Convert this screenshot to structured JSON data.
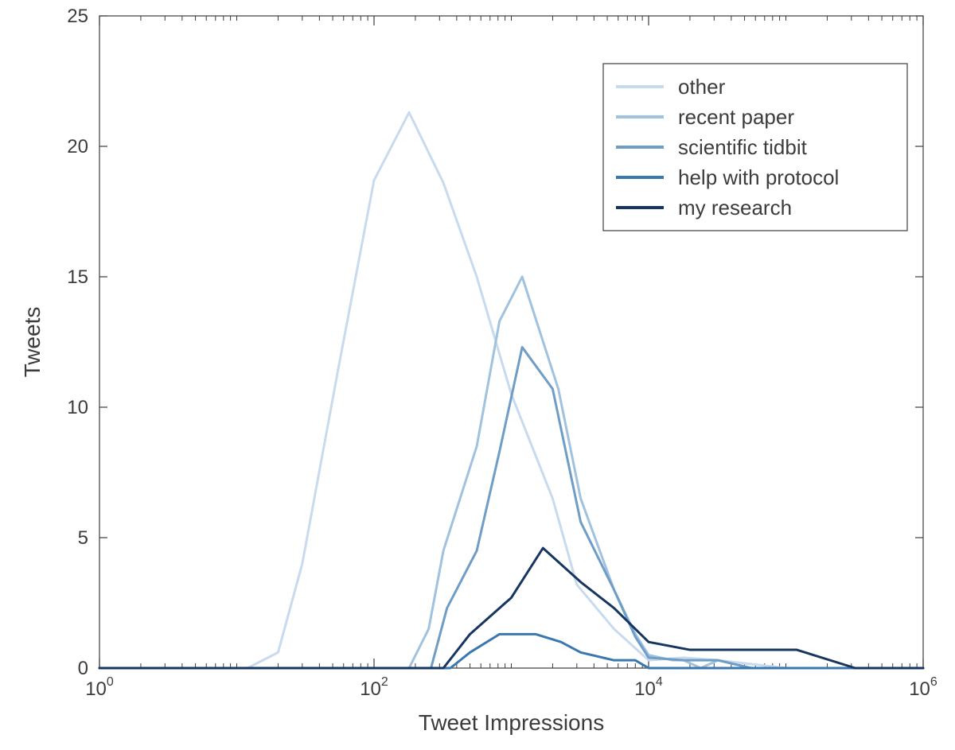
{
  "chart": {
    "type": "line",
    "xlabel": "Tweet Impressions",
    "ylabel": "Tweets",
    "background_color": "#ffffff",
    "axis_color": "#3c3c3c",
    "tick_color": "#3c3c3c",
    "label_fontsize": 28,
    "tick_fontsize": 24,
    "legend_fontsize": 26,
    "line_width_series": 3,
    "x_scale": "log",
    "y_scale": "linear",
    "xlim": [
      1,
      1000000
    ],
    "ylim": [
      0,
      25
    ],
    "x_major_ticks_exp": [
      0,
      2,
      4,
      6
    ],
    "x_minor_decades": [
      0,
      1,
      2,
      3,
      4,
      5
    ],
    "y_ticks": [
      0,
      5,
      10,
      15,
      20,
      25
    ],
    "legend": {
      "position": "top-right",
      "box_stroke": "#3c3c3c",
      "box_fill": "#ffffff",
      "swatch_length": 60,
      "swatch_width": 4
    },
    "series": [
      {
        "name": "other",
        "color": "#c8daed",
        "points": [
          [
            1,
            0
          ],
          [
            1.5,
            0
          ],
          [
            2,
            0
          ],
          [
            3,
            0
          ],
          [
            5,
            0
          ],
          [
            8,
            0
          ],
          [
            12,
            0
          ],
          [
            20,
            0.6
          ],
          [
            30,
            4.0
          ],
          [
            55,
            11.5
          ],
          [
            100,
            18.7
          ],
          [
            180,
            21.3
          ],
          [
            320,
            18.6
          ],
          [
            560,
            15.0
          ],
          [
            1000,
            10.5
          ],
          [
            2000,
            6.5
          ],
          [
            3000,
            3.2
          ],
          [
            5600,
            1.5
          ],
          [
            10000,
            0.3
          ],
          [
            18000,
            0.4
          ],
          [
            32000,
            0.3
          ],
          [
            100000,
            0
          ],
          [
            300000,
            0
          ],
          [
            1000000,
            0
          ]
        ]
      },
      {
        "name": "recent paper",
        "color": "#a0c2de",
        "points": [
          [
            1,
            0
          ],
          [
            100,
            0
          ],
          [
            180,
            0
          ],
          [
            250,
            1.5
          ],
          [
            320,
            4.5
          ],
          [
            560,
            8.5
          ],
          [
            820,
            13.3
          ],
          [
            1200,
            15.0
          ],
          [
            2200,
            10.7
          ],
          [
            3200,
            6.5
          ],
          [
            5600,
            3.0
          ],
          [
            8000,
            1.3
          ],
          [
            10000,
            0.5
          ],
          [
            15000,
            0.3
          ],
          [
            18000,
            0.3
          ],
          [
            24000,
            0
          ],
          [
            32000,
            0.3
          ],
          [
            56000,
            0
          ],
          [
            100000,
            0
          ],
          [
            1000000,
            0
          ]
        ]
      },
      {
        "name": "scientific tidbit",
        "color": "#6f9dc6",
        "points": [
          [
            1,
            0
          ],
          [
            180,
            0
          ],
          [
            260,
            0
          ],
          [
            340,
            2.3
          ],
          [
            560,
            4.5
          ],
          [
            820,
            8.3
          ],
          [
            1200,
            12.3
          ],
          [
            2000,
            10.7
          ],
          [
            3200,
            5.6
          ],
          [
            5600,
            3.0
          ],
          [
            8000,
            1.2
          ],
          [
            10000,
            0.4
          ],
          [
            18000,
            0.3
          ],
          [
            32000,
            0.3
          ],
          [
            56000,
            0
          ],
          [
            100000,
            0
          ],
          [
            1000000,
            0
          ]
        ]
      },
      {
        "name": "help with protocol",
        "color": "#3b77af",
        "points": [
          [
            1,
            0
          ],
          [
            260,
            0
          ],
          [
            360,
            0
          ],
          [
            500,
            0.6
          ],
          [
            820,
            1.3
          ],
          [
            1500,
            1.3
          ],
          [
            2300,
            1.0
          ],
          [
            3200,
            0.6
          ],
          [
            5600,
            0.3
          ],
          [
            8000,
            0.3
          ],
          [
            10000,
            0
          ],
          [
            32000,
            0
          ],
          [
            100000,
            0
          ],
          [
            1000000,
            0
          ]
        ]
      },
      {
        "name": "my research",
        "color": "#163560",
        "points": [
          [
            1,
            0
          ],
          [
            260,
            0
          ],
          [
            320,
            0
          ],
          [
            500,
            1.3
          ],
          [
            1000,
            2.7
          ],
          [
            1700,
            4.6
          ],
          [
            3200,
            3.3
          ],
          [
            5600,
            2.3
          ],
          [
            10000,
            1.0
          ],
          [
            20000,
            0.7
          ],
          [
            56000,
            0.7
          ],
          [
            120000,
            0.7
          ],
          [
            320000,
            0
          ],
          [
            1000000,
            0
          ]
        ]
      }
    ]
  }
}
